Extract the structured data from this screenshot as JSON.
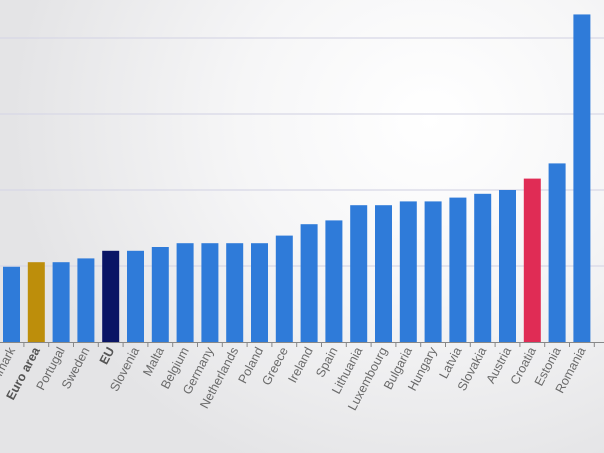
{
  "chart_data": {
    "type": "bar",
    "title": "",
    "xlabel": "",
    "ylabel": "",
    "y_tick_labels_visible": false,
    "grid": "horizontal",
    "ylim": [
      0,
      4.4
    ],
    "gridlines": [
      1,
      2,
      3,
      4
    ],
    "categories": [
      "Denmark",
      "Euro area",
      "Portugal",
      "Sweden",
      "EU",
      "Slovenia",
      "Malta",
      "Belgium",
      "Germany",
      "Netherlands",
      "Poland",
      "Greece",
      "Ireland",
      "Spain",
      "Lithuania",
      "Luxembourg",
      "Bulgaria",
      "Hungary",
      "Latvia",
      "Slovakia",
      "Austria",
      "Croatia",
      "Estonia",
      "Romania"
    ],
    "values": [
      0.99,
      1.05,
      1.05,
      1.1,
      1.2,
      1.2,
      1.25,
      1.3,
      1.3,
      1.3,
      1.3,
      1.4,
      1.55,
      1.6,
      1.8,
      1.8,
      1.85,
      1.85,
      1.9,
      1.95,
      2.0,
      2.15,
      2.35,
      4.31
    ],
    "bold_categories": [
      "Euro area",
      "EU"
    ],
    "colors": {
      "default": "#2f7bd9",
      "Euro area": "#bd8e0b",
      "EU": "#0a1565",
      "Croatia": "#e02c55",
      "gridline": "#d8d8e6",
      "axis": "#888888",
      "label": "#6a6a6a"
    }
  }
}
